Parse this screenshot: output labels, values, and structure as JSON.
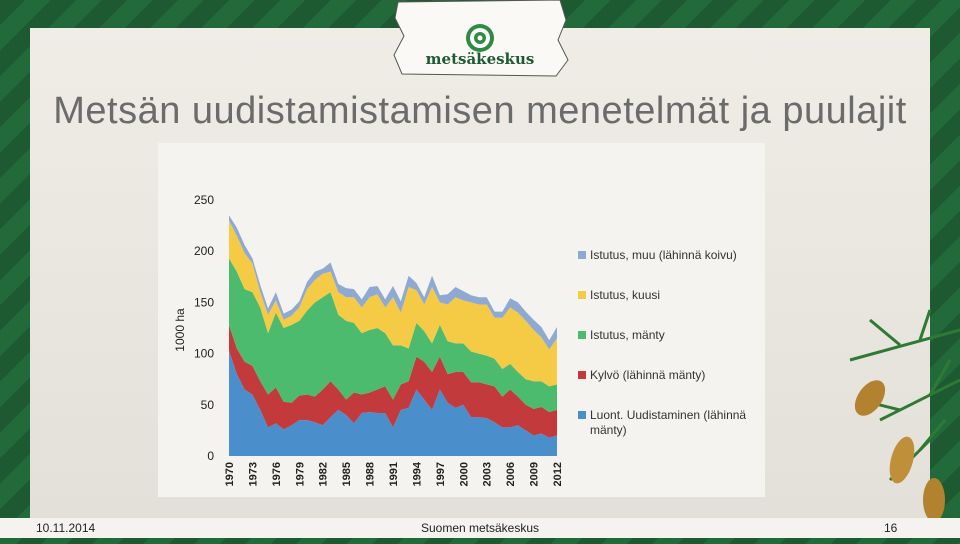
{
  "header": {
    "logo_text": "metsäkeskus"
  },
  "chart_data": {
    "type": "area",
    "stacked": true,
    "title": "Metsän uudistamistamisen menetelmät ja puulajit",
    "y_label": "1000 ha",
    "x": [
      1970,
      1971,
      1972,
      1973,
      1974,
      1975,
      1976,
      1977,
      1978,
      1979,
      1980,
      1981,
      1982,
      1983,
      1984,
      1985,
      1986,
      1987,
      1988,
      1989,
      1990,
      1991,
      1992,
      1993,
      1994,
      1995,
      1996,
      1997,
      1998,
      1999,
      2000,
      2001,
      2002,
      2003,
      2004,
      2005,
      2006,
      2007,
      2008,
      2009,
      2010,
      2011,
      2012
    ],
    "xlim": [
      1970,
      2012
    ],
    "xticks": [
      1970,
      1973,
      1976,
      1979,
      1982,
      1985,
      1988,
      1991,
      1994,
      1997,
      2000,
      2003,
      2006,
      2009,
      2012
    ],
    "ylim": [
      0,
      250
    ],
    "yticks": [
      0,
      50,
      100,
      150,
      200,
      250
    ],
    "grid": false,
    "legend": "right",
    "series": [
      {
        "name": "Luont. Uudistaminen (lähinnä mänty)",
        "color": "#4a8fcc",
        "values": [
          103,
          80,
          65,
          60,
          45,
          28,
          32,
          26,
          30,
          35,
          35,
          33,
          30,
          38,
          45,
          40,
          32,
          42,
          43,
          42,
          42,
          28,
          45,
          47,
          65,
          55,
          45,
          65,
          52,
          47,
          50,
          38,
          38,
          37,
          33,
          28,
          28,
          30,
          25,
          20,
          22,
          18,
          20
        ]
      },
      {
        "name": "Kylvö (lähinnä mänty)",
        "color": "#c23a3c",
        "values": [
          25,
          25,
          27,
          28,
          28,
          32,
          35,
          27,
          22,
          24,
          25,
          25,
          35,
          35,
          20,
          15,
          30,
          18,
          19,
          23,
          26,
          27,
          25,
          26,
          32,
          37,
          37,
          32,
          28,
          35,
          32,
          34,
          34,
          33,
          35,
          30,
          37,
          28,
          25,
          26,
          26,
          25,
          25
        ]
      },
      {
        "name": "Istutus, mänty",
        "color": "#4dbb6e",
        "values": [
          65,
          75,
          71,
          72,
          72,
          60,
          73,
          72,
          76,
          73,
          82,
          92,
          90,
          87,
          73,
          77,
          68,
          60,
          61,
          60,
          52,
          53,
          38,
          32,
          33,
          30,
          28,
          31,
          32,
          28,
          28,
          30,
          28,
          28,
          27,
          27,
          25,
          24,
          25,
          27,
          25,
          25,
          25
        ]
      },
      {
        "name": "Istutus, kuusi",
        "color": "#f5cb46",
        "values": [
          37,
          35,
          35,
          28,
          15,
          18,
          12,
          8,
          9,
          13,
          21,
          22,
          23,
          20,
          22,
          23,
          25,
          25,
          32,
          33,
          25,
          47,
          32,
          60,
          32,
          26,
          55,
          22,
          36,
          45,
          42,
          48,
          48,
          50,
          40,
          50,
          55,
          58,
          57,
          50,
          43,
          36,
          45
        ]
      },
      {
        "name": "Istutus, muu (lähinnä koivu)",
        "color": "#8eaad3",
        "values": [
          5,
          8,
          8,
          5,
          7,
          6,
          8,
          6,
          6,
          6,
          7,
          8,
          5,
          9,
          8,
          9,
          8,
          8,
          10,
          8,
          8,
          11,
          11,
          11,
          7,
          7,
          11,
          7,
          10,
          10,
          9,
          7,
          7,
          7,
          6,
          6,
          9,
          10,
          9,
          10,
          10,
          9,
          11
        ]
      }
    ]
  },
  "footer": {
    "date": "10.11.2014",
    "organization": "Suomen metsäkeskus",
    "page": "16"
  }
}
